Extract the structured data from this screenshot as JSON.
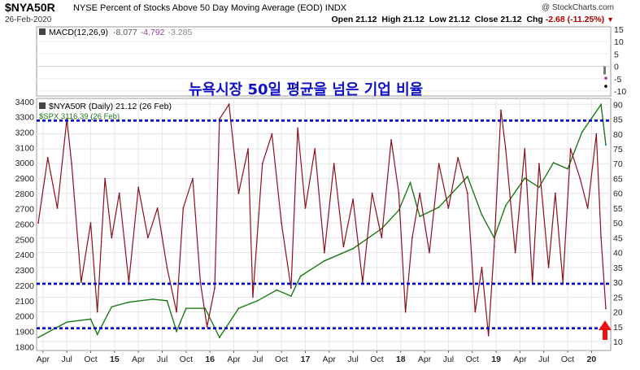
{
  "header": {
    "symbol": "$NYA50R",
    "description": "NYSE Percent of Stocks Above 50 Day Moving Average (EOD) INDX",
    "date": "26-Feb-2020",
    "logo": "@ StockCharts.com",
    "open_label": "Open",
    "open": "21.12",
    "high_label": "High",
    "high": "21.12",
    "low_label": "Low",
    "low": "21.12",
    "close_label": "Close",
    "close": "21.12",
    "chg_label": "Chg",
    "chg": "-2.68 (-11.25%)",
    "chg_icon": "down-triangle-icon"
  },
  "macd": {
    "legend_label": "MACD(12,26,9)",
    "v1": "-8.077",
    "v2": "-4.792",
    "v3": "-3.285",
    "axis_ticks": [
      15,
      10,
      5,
      0,
      -5,
      -10
    ],
    "ylim": [
      -12,
      16
    ],
    "colors": {
      "macd": "#000000",
      "signal": "#9b3a9b",
      "hist": "#777777"
    }
  },
  "annotation_korean": "뉴욕시장 50일 평균을 넘은 기업 비율",
  "main": {
    "legend1": "$NYA50R (Daily) 21.12 (26 Feb)",
    "legend2": "$SPX 3116.39 (26 Feb)",
    "right_ticks": [
      90,
      85,
      80,
      75,
      70,
      65,
      60,
      55,
      50,
      45,
      40,
      35,
      30,
      25,
      20,
      15,
      10
    ],
    "left_ticks": [
      3400,
      3300,
      3200,
      3100,
      3000,
      2900,
      2800,
      2700,
      2600,
      2500,
      2400,
      2300,
      2200,
      2100,
      2000,
      1900,
      1800
    ],
    "x_labels": [
      "Apr",
      "Jul",
      "Oct",
      "15",
      "Apr",
      "Jul",
      "Oct",
      "16",
      "Apr",
      "Jul",
      "Oct",
      "17",
      "Apr",
      "Jul",
      "Oct",
      "18",
      "Apr",
      "Jul",
      "Oct",
      "19",
      "Apr",
      "Jul",
      "Oct",
      "20"
    ],
    "hlines": [
      84.5,
      29.5,
      14.5
    ],
    "arrow_icon": "red-up-arrow-icon",
    "colors": {
      "nya50r": "#8b0f1e",
      "spx": "#1c7a17",
      "hline": "#0000cc",
      "arrow": "#ee1111"
    }
  },
  "chart_data": {
    "type": "line",
    "x_range": [
      "2014-03",
      "2020-02-26"
    ],
    "series": [
      {
        "name": "$NYA50R",
        "axis": "right",
        "ylim": [
          7,
          92
        ],
        "x": [
          2014.2,
          2014.3,
          2014.4,
          2014.5,
          2014.55,
          2014.65,
          2014.75,
          2014.82,
          2014.9,
          2014.97,
          2015.05,
          2015.15,
          2015.25,
          2015.35,
          2015.45,
          2015.55,
          2015.65,
          2015.72,
          2015.82,
          2015.9,
          2015.97,
          2016.05,
          2016.1,
          2016.2,
          2016.3,
          2016.4,
          2016.45,
          2016.55,
          2016.65,
          2016.75,
          2016.85,
          2016.92,
          2017.0,
          2017.1,
          2017.2,
          2017.3,
          2017.4,
          2017.5,
          2017.6,
          2017.7,
          2017.8,
          2017.9,
          2017.98,
          2018.05,
          2018.12,
          2018.2,
          2018.3,
          2018.4,
          2018.5,
          2018.6,
          2018.7,
          2018.78,
          2018.85,
          2018.92,
          2018.98,
          2019.05,
          2019.1,
          2019.2,
          2019.3,
          2019.38,
          2019.45,
          2019.55,
          2019.62,
          2019.7,
          2019.78,
          2019.88,
          2019.96,
          2020.05,
          2020.1,
          2020.15
        ],
        "y": [
          50,
          72,
          55,
          85,
          70,
          30,
          50,
          20,
          65,
          45,
          60,
          30,
          62,
          45,
          55,
          35,
          20,
          55,
          65,
          30,
          15,
          28,
          85,
          90,
          60,
          75,
          25,
          70,
          80,
          50,
          28,
          82,
          55,
          75,
          40,
          70,
          42,
          58,
          30,
          60,
          45,
          78,
          60,
          20,
          45,
          60,
          40,
          70,
          55,
          72,
          60,
          20,
          35,
          12,
          42,
          88,
          75,
          40,
          75,
          30,
          70,
          35,
          60,
          30,
          75,
          65,
          55,
          80,
          45,
          21.12
        ]
      },
      {
        "name": "$SPX",
        "axis": "left",
        "ylim": [
          1775,
          3420
        ],
        "x": [
          2014.2,
          2014.5,
          2014.75,
          2014.82,
          2014.97,
          2015.15,
          2015.4,
          2015.55,
          2015.65,
          2015.75,
          2015.95,
          2016.1,
          2016.3,
          2016.5,
          2016.7,
          2016.85,
          2016.95,
          2017.2,
          2017.5,
          2017.8,
          2017.98,
          2018.1,
          2018.2,
          2018.4,
          2018.7,
          2018.85,
          2018.98,
          2019.1,
          2019.3,
          2019.45,
          2019.6,
          2019.75,
          2019.9,
          2020.1,
          2020.15
        ],
        "y": [
          1860,
          1960,
          1980,
          1880,
          2060,
          2090,
          2110,
          2100,
          1900,
          2050,
          2050,
          1860,
          2050,
          2100,
          2170,
          2130,
          2260,
          2360,
          2440,
          2570,
          2690,
          2870,
          2650,
          2710,
          2910,
          2660,
          2510,
          2720,
          2900,
          2840,
          3000,
          2960,
          3200,
          3380,
          3116.39
        ]
      }
    ],
    "macd_values": {
      "macd": -8.077,
      "signal": -4.792,
      "histogram": -3.285
    },
    "ylabel_left": "",
    "ylabel_right": "",
    "xlabel": "",
    "grid": true,
    "legend_placement": "top-left"
  }
}
